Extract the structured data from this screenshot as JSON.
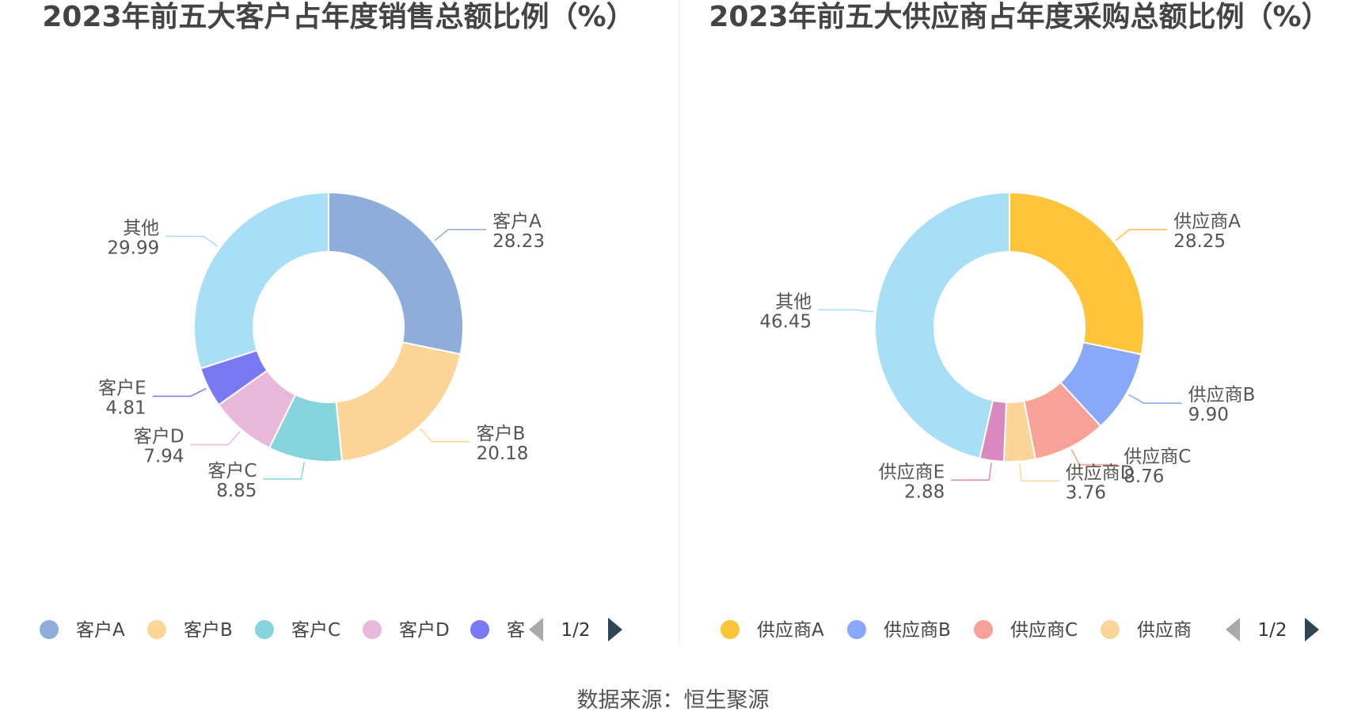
{
  "chart_data": [
    {
      "type": "pie",
      "title": "2023年前五大客户占年度销售总额比例（%）",
      "slices": [
        {
          "name": "客户A",
          "value": 28.23,
          "color": "#8eadda"
        },
        {
          "name": "客户B",
          "value": 20.18,
          "color": "#fed599"
        },
        {
          "name": "客户C",
          "value": 8.85,
          "color": "#86d4dc"
        },
        {
          "name": "客户D",
          "value": 7.94,
          "color": "#e8b9da"
        },
        {
          "name": "客户E",
          "value": 4.81,
          "color": "#7879f3"
        },
        {
          "name": "其他",
          "value": 29.99,
          "color": "#a8dff7"
        }
      ],
      "legend": {
        "position": "bottom",
        "visible_items": [
          "客户A",
          "客户B",
          "客户C",
          "客户D",
          "客"
        ],
        "page": "1/2"
      }
    },
    {
      "type": "pie",
      "title": "2023年前五大供应商占年度采购总额比例（%）",
      "slices": [
        {
          "name": "供应商A",
          "value": 28.25,
          "color": "#fdc43c"
        },
        {
          "name": "供应商B",
          "value": 9.9,
          "color": "#89a8fa"
        },
        {
          "name": "供应商C",
          "value": 8.76,
          "color": "#f8a196"
        },
        {
          "name": "供应商D",
          "value": 3.76,
          "color": "#fed599"
        },
        {
          "name": "供应商E",
          "value": 2.88,
          "color": "#db88c1"
        },
        {
          "name": "其他",
          "value": 46.45,
          "color": "#a8dff7"
        }
      ],
      "legend": {
        "position": "bottom",
        "visible_items": [
          "供应商A",
          "供应商B",
          "供应商C",
          "供应商"
        ],
        "page": "1/2"
      }
    }
  ],
  "footer": {
    "source": "数据来源：恒生聚源"
  }
}
